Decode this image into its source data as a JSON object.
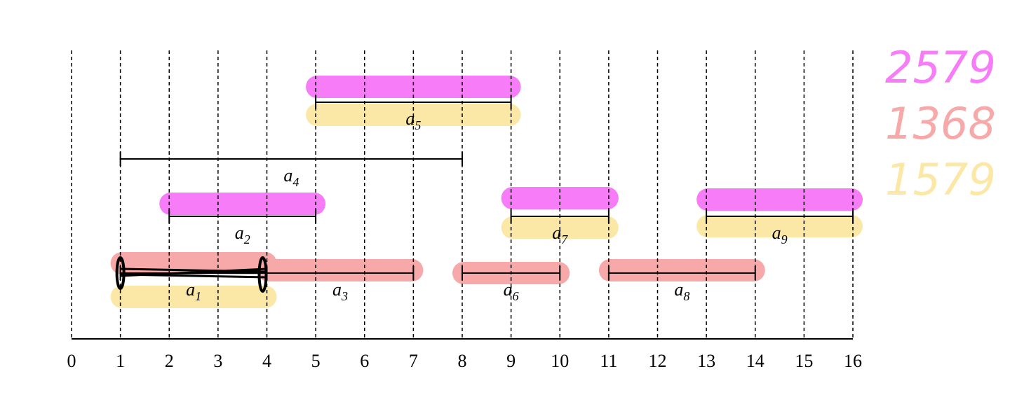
{
  "axis": {
    "ticks": [
      0,
      1,
      2,
      3,
      4,
      5,
      6,
      7,
      8,
      9,
      10,
      11,
      12,
      13,
      14,
      15,
      16
    ]
  },
  "intervals": [
    {
      "letter": "a",
      "index": "1",
      "start": 1,
      "end": 4
    },
    {
      "letter": "a",
      "index": "2",
      "start": 2,
      "end": 5
    },
    {
      "letter": "a",
      "index": "3",
      "start": 4,
      "end": 7
    },
    {
      "letter": "a",
      "index": "4",
      "start": 1,
      "end": 8
    },
    {
      "letter": "a",
      "index": "5",
      "start": 5,
      "end": 9
    },
    {
      "letter": "a",
      "index": "6",
      "start": 8,
      "end": 10
    },
    {
      "letter": "a",
      "index": "7",
      "start": 9,
      "end": 11
    },
    {
      "letter": "a",
      "index": "8",
      "start": 11,
      "end": 14
    },
    {
      "letter": "a",
      "index": "9",
      "start": 13,
      "end": 16
    }
  ],
  "notes": [
    {
      "text": "2579",
      "color": "#f77cf7"
    },
    {
      "text": "1368",
      "color": "#f7a8a8"
    },
    {
      "text": "1579",
      "color": "#fbe8a6"
    }
  ]
}
